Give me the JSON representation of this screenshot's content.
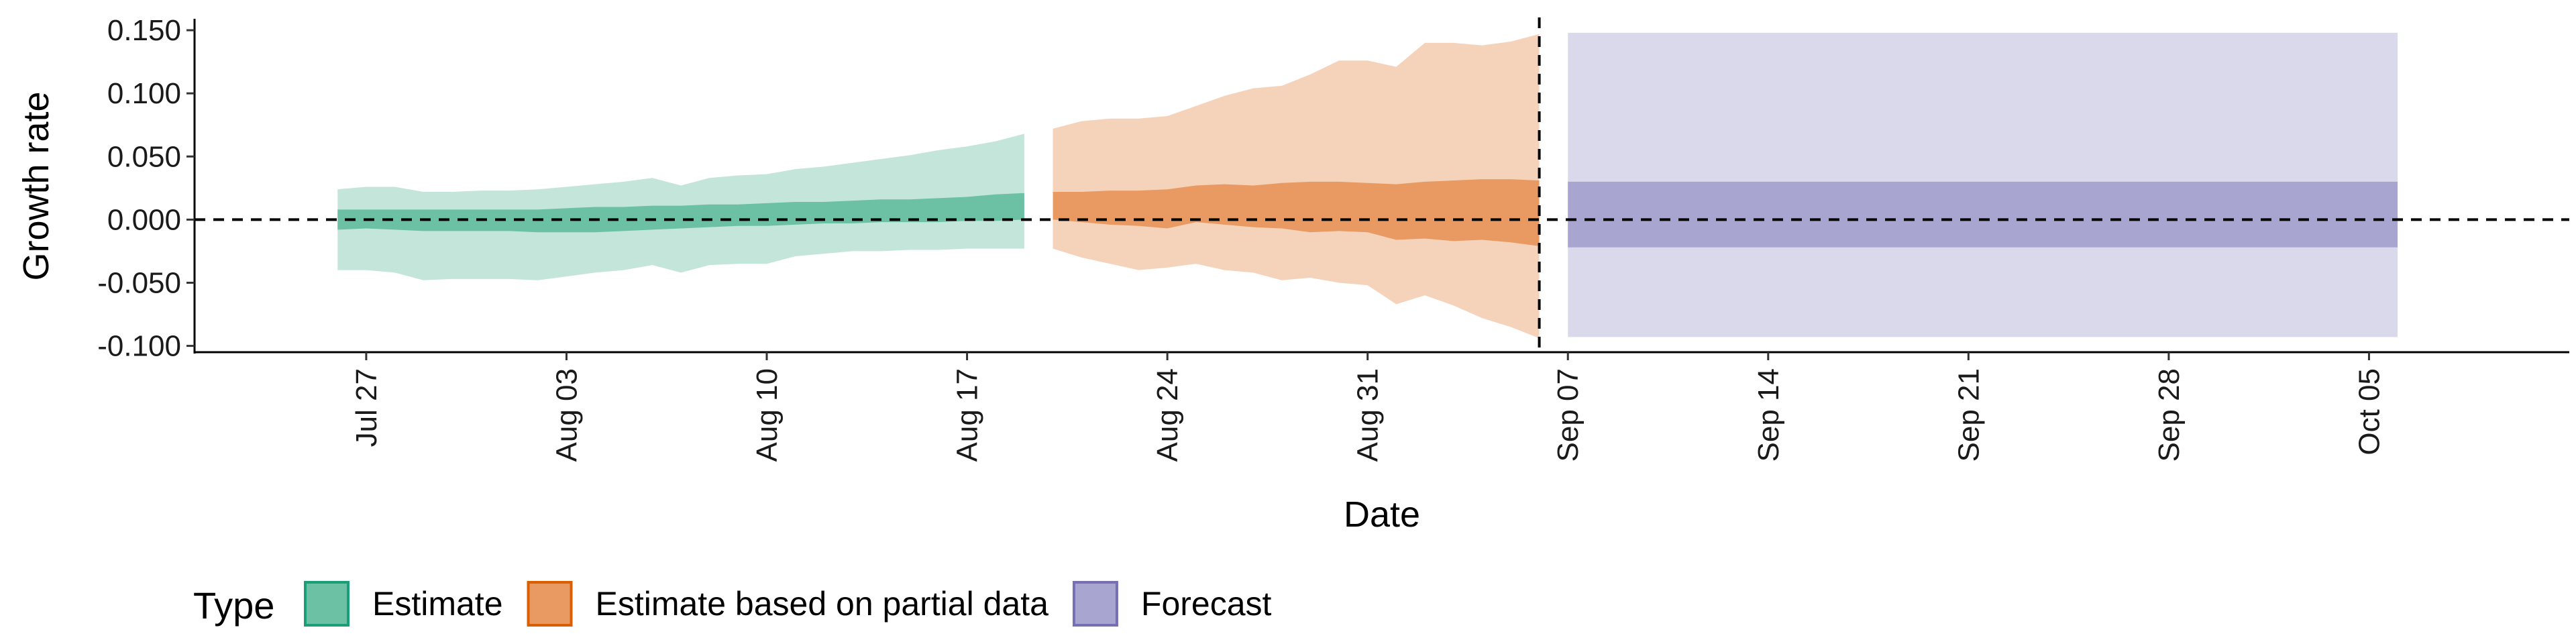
{
  "chart_data": {
    "type": "area",
    "title": "",
    "xlabel": "Date",
    "ylabel": "Growth rate",
    "ylim": [
      -0.105,
      0.158
    ],
    "xlim": [
      "2020-07-21",
      "2020-10-12"
    ],
    "y_ticks": [
      -0.1,
      -0.05,
      0,
      0.05,
      0.1,
      0.15
    ],
    "y_tick_labels": [
      "-0.100",
      "-0.050",
      "0.000",
      "0.050",
      "0.100",
      "0.150"
    ],
    "x_ticks": [
      "2020-07-27",
      "2020-08-03",
      "2020-08-10",
      "2020-08-17",
      "2020-08-24",
      "2020-08-31",
      "2020-09-07",
      "2020-09-14",
      "2020-09-21",
      "2020-09-28",
      "2020-10-05"
    ],
    "x_tick_labels": [
      "Jul 27",
      "Aug 03",
      "Aug 10",
      "Aug 17",
      "Aug 24",
      "Aug 31",
      "Sep 07",
      "Sep 14",
      "Sep 21",
      "Sep 28",
      "Oct 05"
    ],
    "grid": false,
    "reference_lines": [
      {
        "orientation": "horizontal",
        "value": 0,
        "style": "dashed"
      },
      {
        "orientation": "vertical",
        "value": "2020-09-06",
        "style": "dashed"
      }
    ],
    "legend": {
      "title": "Type",
      "position": "bottom-left",
      "entries": [
        {
          "label": "Estimate",
          "fill": "#6cc0a4",
          "stroke": "#1b9e77"
        },
        {
          "label": "Estimate based on partial data",
          "fill": "#e99a63",
          "stroke": "#d95f02"
        },
        {
          "label": "Forecast",
          "fill": "#a9a5d1",
          "stroke": "#7570b3"
        }
      ]
    },
    "series": [
      {
        "name": "Estimate",
        "color_inner": "#6cc0a4",
        "color_outer": "#c4e5da",
        "x": [
          "2020-07-26",
          "2020-07-27",
          "2020-07-28",
          "2020-07-29",
          "2020-07-30",
          "2020-07-31",
          "2020-08-01",
          "2020-08-02",
          "2020-08-03",
          "2020-08-04",
          "2020-08-05",
          "2020-08-06",
          "2020-08-07",
          "2020-08-08",
          "2020-08-09",
          "2020-08-10",
          "2020-08-11",
          "2020-08-12",
          "2020-08-13",
          "2020-08-14",
          "2020-08-15",
          "2020-08-16",
          "2020-08-17",
          "2020-08-18",
          "2020-08-19"
        ],
        "outer_upper": [
          0.024,
          0.026,
          0.026,
          0.022,
          0.022,
          0.023,
          0.023,
          0.024,
          0.026,
          0.028,
          0.03,
          0.033,
          0.027,
          0.033,
          0.035,
          0.036,
          0.04,
          0.042,
          0.045,
          0.048,
          0.051,
          0.055,
          0.058,
          0.062,
          0.068
        ],
        "inner_upper": [
          0.008,
          0.008,
          0.008,
          0.008,
          0.008,
          0.008,
          0.008,
          0.008,
          0.009,
          0.01,
          0.01,
          0.011,
          0.011,
          0.012,
          0.012,
          0.013,
          0.014,
          0.014,
          0.015,
          0.016,
          0.016,
          0.017,
          0.018,
          0.02,
          0.021
        ],
        "inner_lower": [
          -0.008,
          -0.007,
          -0.008,
          -0.009,
          -0.009,
          -0.009,
          -0.009,
          -0.01,
          -0.01,
          -0.01,
          -0.009,
          -0.008,
          -0.007,
          -0.006,
          -0.005,
          -0.005,
          -0.004,
          -0.003,
          -0.003,
          -0.002,
          -0.002,
          -0.002,
          -0.001,
          -0.001,
          0.0
        ],
        "outer_lower": [
          -0.04,
          -0.04,
          -0.042,
          -0.048,
          -0.047,
          -0.047,
          -0.047,
          -0.048,
          -0.045,
          -0.042,
          -0.04,
          -0.036,
          -0.042,
          -0.036,
          -0.035,
          -0.035,
          -0.029,
          -0.027,
          -0.025,
          -0.025,
          -0.024,
          -0.024,
          -0.023,
          -0.023,
          -0.023
        ]
      },
      {
        "name": "Estimate based on partial data",
        "color_inner": "#e99a63",
        "color_outer": "#f5d3bb",
        "x": [
          "2020-08-20",
          "2020-08-21",
          "2020-08-22",
          "2020-08-23",
          "2020-08-24",
          "2020-08-25",
          "2020-08-26",
          "2020-08-27",
          "2020-08-28",
          "2020-08-29",
          "2020-08-30",
          "2020-08-31",
          "2020-09-01",
          "2020-09-02",
          "2020-09-03",
          "2020-09-04",
          "2020-09-05",
          "2020-09-06"
        ],
        "outer_upper": [
          0.072,
          0.078,
          0.08,
          0.08,
          0.082,
          0.09,
          0.098,
          0.104,
          0.106,
          0.115,
          0.126,
          0.126,
          0.121,
          0.14,
          0.14,
          0.138,
          0.141,
          0.147
        ],
        "inner_upper": [
          0.022,
          0.022,
          0.023,
          0.023,
          0.024,
          0.027,
          0.028,
          0.027,
          0.029,
          0.03,
          0.03,
          0.029,
          0.028,
          0.03,
          0.031,
          0.032,
          0.032,
          0.031
        ],
        "inner_lower": [
          0.0,
          -0.002,
          -0.004,
          -0.005,
          -0.007,
          -0.002,
          -0.004,
          -0.006,
          -0.007,
          -0.01,
          -0.009,
          -0.01,
          -0.016,
          -0.015,
          -0.017,
          -0.016,
          -0.018,
          -0.021
        ],
        "outer_lower": [
          -0.023,
          -0.03,
          -0.035,
          -0.04,
          -0.038,
          -0.035,
          -0.04,
          -0.042,
          -0.048,
          -0.046,
          -0.05,
          -0.052,
          -0.067,
          -0.06,
          -0.068,
          -0.078,
          -0.085,
          -0.094
        ]
      },
      {
        "name": "Forecast",
        "color_inner": "#a9a5d1",
        "color_outer": "#dad9ec",
        "x": [
          "2020-09-07",
          "2020-10-06"
        ],
        "outer_upper": [
          0.148,
          0.148
        ],
        "inner_upper": [
          0.03,
          0.03
        ],
        "inner_lower": [
          -0.022,
          -0.022
        ],
        "outer_lower": [
          -0.093,
          -0.093
        ]
      }
    ]
  }
}
